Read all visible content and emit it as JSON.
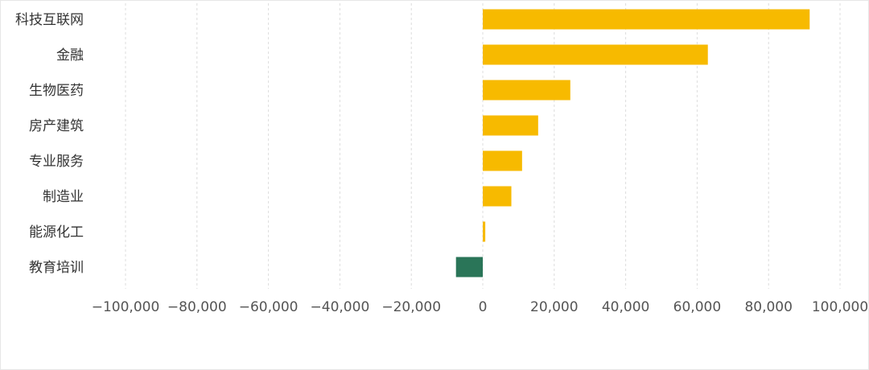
{
  "chart_data": {
    "type": "bar",
    "orientation": "horizontal",
    "title": "",
    "xlabel": "",
    "ylabel": "",
    "categories": [
      "科技互联网",
      "金融",
      "生物医药",
      "房产建筑",
      "专业服务",
      "制造业",
      "能源化工",
      "教育培训"
    ],
    "values": [
      91500,
      63000,
      24500,
      15500,
      11000,
      8000,
      700,
      -7500
    ],
    "xlim": [
      -100000,
      100000
    ],
    "xticks": [
      -100000,
      -80000,
      -60000,
      -40000,
      -20000,
      0,
      20000,
      40000,
      60000,
      80000,
      100000
    ],
    "xtick_labels": [
      "−100,000",
      "−80,000",
      "−60,000",
      "−40,000",
      "−20,000",
      "0",
      "20,000",
      "40,000",
      "60,000",
      "80,000",
      "100,000"
    ],
    "grid": "vertical-dashed",
    "legend": "none",
    "colors": {
      "positive": "#F7BA00",
      "negative": "#2A7558"
    }
  }
}
